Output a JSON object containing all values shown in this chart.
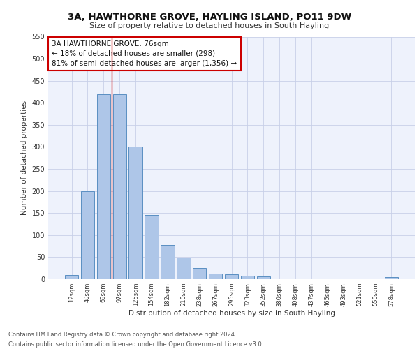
{
  "title1": "3A, HAWTHORNE GROVE, HAYLING ISLAND, PO11 9DW",
  "title2": "Size of property relative to detached houses in South Hayling",
  "xlabel": "Distribution of detached houses by size in South Hayling",
  "ylabel": "Number of detached properties",
  "bar_labels": [
    "12sqm",
    "40sqm",
    "69sqm",
    "97sqm",
    "125sqm",
    "154sqm",
    "182sqm",
    "210sqm",
    "238sqm",
    "267sqm",
    "295sqm",
    "323sqm",
    "352sqm",
    "380sqm",
    "408sqm",
    "437sqm",
    "465sqm",
    "493sqm",
    "521sqm",
    "550sqm",
    "578sqm"
  ],
  "bar_values": [
    10,
    200,
    420,
    420,
    300,
    145,
    78,
    49,
    25,
    13,
    11,
    8,
    7,
    0,
    0,
    0,
    0,
    0,
    0,
    0,
    5
  ],
  "bar_color": "#aec6e8",
  "bar_edgecolor": "#5a8fc2",
  "annotation_text": "3A HAWTHORNE GROVE: 76sqm\n← 18% of detached houses are smaller (298)\n81% of semi-detached houses are larger (1,356) →",
  "vline_x": 2.5,
  "vline_color": "#cc0000",
  "box_color": "#cc0000",
  "ylim": [
    0,
    550
  ],
  "yticks": [
    0,
    50,
    100,
    150,
    200,
    250,
    300,
    350,
    400,
    450,
    500,
    550
  ],
  "footnote": "Contains HM Land Registry data © Crown copyright and database right 2024.\nContains public sector information licensed under the Open Government Licence v3.0.",
  "bg_color": "#eef2fc",
  "grid_color": "#c8d0e8"
}
